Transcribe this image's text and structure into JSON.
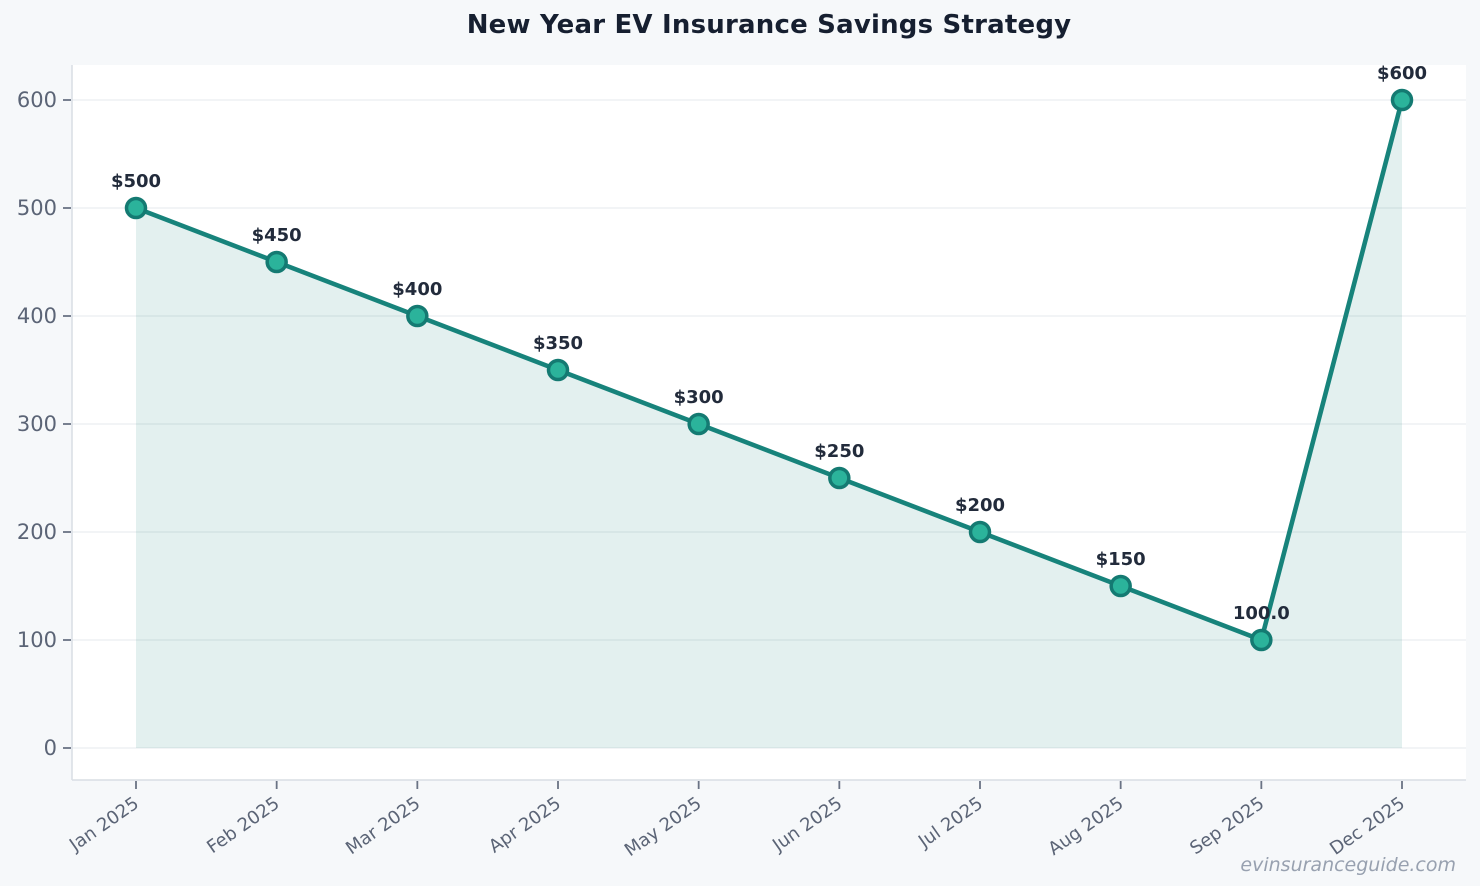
{
  "title": "New Year EV Insurance Savings Strategy",
  "watermark": "evinsuranceguide.com",
  "colors": {
    "page_bg": "#f6f8fa",
    "plot_bg": "#ffffff",
    "line": "#17837b",
    "marker_fill": "#2bb39b",
    "marker_stroke": "#147a72",
    "area_opacity": "0.12",
    "grid": "#edf0f3",
    "spine": "#d9dee4",
    "tick_mark": "#6a7385",
    "tick_label": "#5b6476",
    "data_label": "#222b3b",
    "title_color": "#161f30",
    "watermark_color": "#98a1b0"
  },
  "chart_data": {
    "type": "line",
    "title": "New Year EV Insurance Savings Strategy",
    "x": [
      "Jan 2025",
      "Feb 2025",
      "Mar 2025",
      "Apr 2025",
      "May 2025",
      "Jun 2025",
      "Jul 2025",
      "Aug 2025",
      "Sep 2025",
      "Dec 2025"
    ],
    "values": [
      500,
      450,
      400,
      350,
      300,
      250,
      200,
      150,
      100,
      600
    ],
    "point_labels": [
      "$500",
      "$450",
      "$400",
      "$350",
      "$300",
      "$250",
      "$200",
      "$150",
      "100.0",
      "$600"
    ],
    "yticks": [
      0,
      100,
      200,
      300,
      400,
      500,
      600
    ],
    "ylim": [
      0,
      632
    ],
    "xlabel": "",
    "ylabel": "",
    "grid": true,
    "area": true,
    "legend": "none",
    "x_tick_rotation": 35
  }
}
